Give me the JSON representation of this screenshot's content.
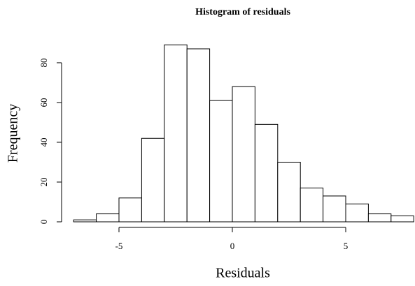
{
  "chart_data": {
    "type": "histogram",
    "title": "Histogram of residuals",
    "x_label": "Residuals",
    "y_label": "Frequency",
    "bins": [
      -7,
      -6,
      -5,
      -4,
      -3,
      -2,
      -1,
      0,
      1,
      2,
      3,
      4,
      5,
      6,
      7,
      8
    ],
    "values": [
      1,
      4,
      12,
      42,
      89,
      87,
      61,
      68,
      49,
      30,
      17,
      13,
      9,
      4,
      3
    ],
    "color": "#ffffff",
    "edge_color": "#000000",
    "xlim": [
      -7,
      8
    ],
    "ylim": [
      0,
      89
    ],
    "xticks": [
      -5,
      0,
      5
    ],
    "yticks": [
      0,
      20,
      40,
      60,
      80
    ]
  }
}
